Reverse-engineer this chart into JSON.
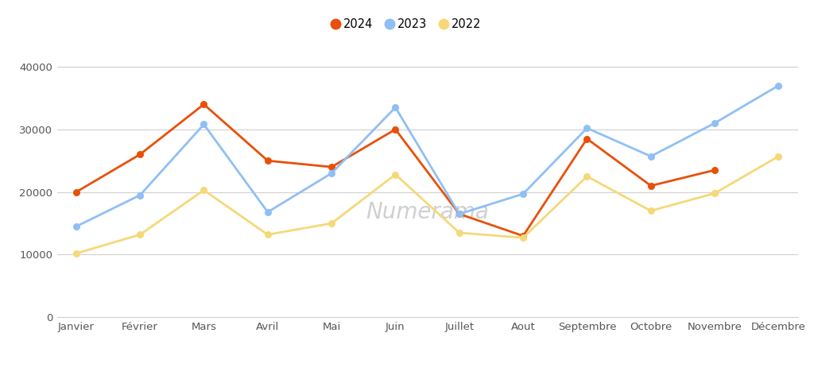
{
  "months": [
    "Janvier",
    "Février",
    "Mars",
    "Avril",
    "Mai",
    "Juin",
    "Juillet",
    "Aout",
    "Septembre",
    "Octobre",
    "Novembre",
    "Décembre"
  ],
  "series": {
    "2024": [
      20000,
      26000,
      34000,
      25000,
      24000,
      30000,
      16500,
      13000,
      28500,
      21000,
      23500,
      null
    ],
    "2023": [
      14500,
      19500,
      30800,
      16800,
      23000,
      33500,
      16500,
      19700,
      30200,
      25700,
      31000,
      37000
    ],
    "2022": [
      10200,
      13200,
      20300,
      13200,
      15000,
      22800,
      13500,
      12700,
      22500,
      17000,
      19800,
      25700
    ]
  },
  "colors": {
    "2024": "#e8500a",
    "2023": "#90bff5",
    "2022": "#f5d878"
  },
  "ylim": [
    0,
    42000
  ],
  "yticks": [
    0,
    10000,
    20000,
    30000,
    40000
  ],
  "watermark": "Numerama",
  "background_color": "#ffffff",
  "grid_color": "#d0d0d0",
  "tick_color": "#555555",
  "legend_fontsize": 10.5,
  "axis_fontsize": 9.5
}
